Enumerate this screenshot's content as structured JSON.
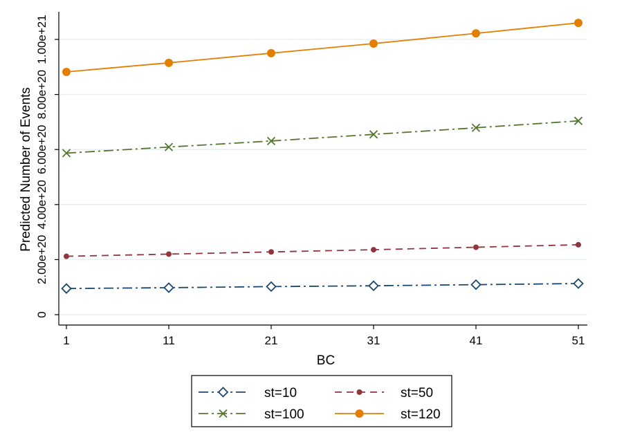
{
  "chart_data": {
    "type": "line",
    "title": "",
    "xlabel": "BC",
    "ylabel": "Predicted Number of Events",
    "x": [
      1,
      11,
      21,
      31,
      41,
      51
    ],
    "xticks": [
      "1",
      "11",
      "21",
      "31",
      "41",
      "51"
    ],
    "xlim": [
      1,
      51
    ],
    "ylim": [
      -2.5e+19,
      1.05e+21
    ],
    "yticks": [
      0,
      2e+20,
      4e+20,
      6e+20,
      8e+20,
      1e+21
    ],
    "ytick_labels": [
      "0",
      "2.00e+20",
      "4.00e+20",
      "6.00e+20",
      "8.00e+20",
      "1.00e+21"
    ],
    "grid": true,
    "legend_position": "bottom",
    "series": [
      {
        "name": "st=10",
        "values": [
          9.5e+19,
          9.8e+19,
          1.02e+20,
          1.05e+20,
          1.09e+20,
          1.13e+20
        ],
        "color": "#1a476f",
        "marker": "diamond-hollow",
        "line_style": "longdash-dot"
      },
      {
        "name": "st=50",
        "values": [
          2.12e+20,
          2.2e+20,
          2.28e+20,
          2.36e+20,
          2.45e+20,
          2.54e+20
        ],
        "color": "#90353b",
        "marker": "small-dot",
        "line_style": "dash"
      },
      {
        "name": "st=100",
        "values": [
          5.87e+20,
          6.09e+20,
          6.31e+20,
          6.55e+20,
          6.79e+20,
          7.04e+20
        ],
        "color": "#55752f",
        "marker": "x",
        "line_style": "longdash-dot"
      },
      {
        "name": "st=120",
        "values": [
          8.82e+20,
          9.15e+20,
          9.5e+20,
          9.85e+20,
          1.022e+21,
          1.06e+21
        ],
        "color": "#e37e00",
        "marker": "filled-circle",
        "line_style": "solid"
      }
    ]
  }
}
